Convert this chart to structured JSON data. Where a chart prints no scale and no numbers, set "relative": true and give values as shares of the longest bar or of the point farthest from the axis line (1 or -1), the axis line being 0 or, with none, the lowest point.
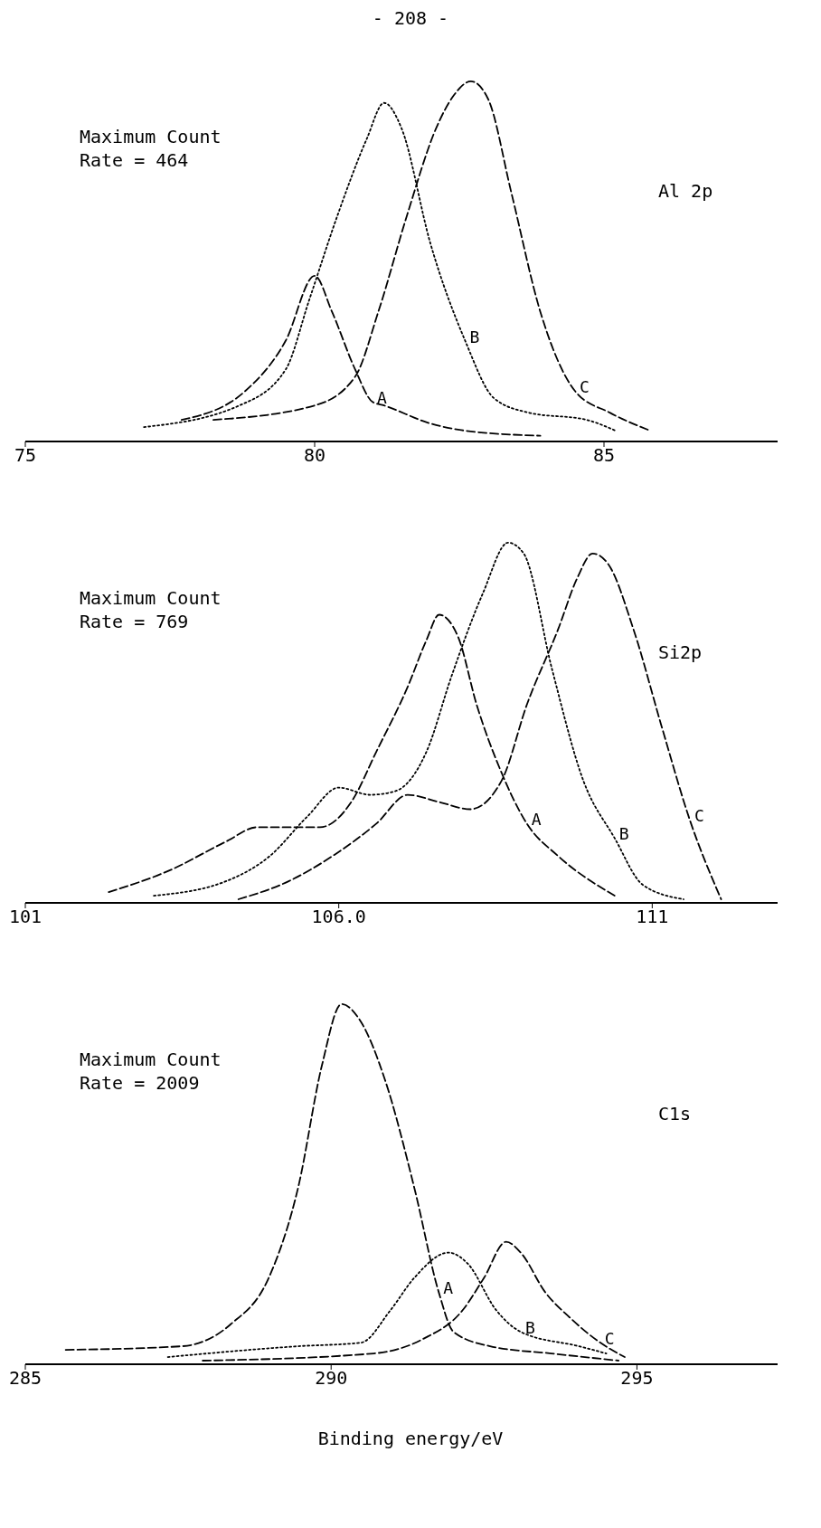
{
  "chart_data": [
    {
      "type": "line",
      "title": "- 208 -",
      "relative": true,
      "xlim": [
        75,
        88
      ],
      "xticks": [
        75,
        80,
        85
      ],
      "annotations": [
        "Maximum Count\nRate = 464",
        "Al 2p"
      ],
      "series": [
        {
          "name": "A",
          "color": "#000000",
          "line_style": "dashed",
          "x": [
            77.7,
            78.8,
            79.5,
            80.0,
            80.3,
            80.7,
            81.0,
            81.2,
            82.0,
            82.6,
            83.9
          ],
          "values": [
            0.06,
            0.14,
            0.28,
            0.46,
            0.36,
            0.2,
            0.11,
            0.1,
            0.05,
            0.03,
            0.016
          ]
        },
        {
          "name": "B",
          "color": "#000000",
          "line_style": "dotted",
          "x": [
            77.05,
            78.7,
            79.5,
            79.9,
            80.4,
            80.9,
            81.2,
            81.5,
            82.0,
            82.6,
            83.1,
            83.7,
            84.7,
            85.2
          ],
          "values": [
            0.04,
            0.1,
            0.2,
            0.39,
            0.63,
            0.84,
            0.94,
            0.87,
            0.55,
            0.28,
            0.12,
            0.08,
            0.06,
            0.03
          ]
        },
        {
          "name": "C",
          "color": "#000000",
          "line_style": "dashed",
          "x": [
            78.25,
            80.0,
            80.7,
            81.1,
            81.6,
            82.1,
            82.4,
            82.7,
            83.0,
            83.4,
            83.9,
            84.5,
            85.1,
            85.8
          ],
          "values": [
            0.06,
            0.1,
            0.18,
            0.36,
            0.63,
            0.87,
            0.96,
            1.0,
            0.95,
            0.69,
            0.36,
            0.14,
            0.08,
            0.03
          ]
        }
      ]
    },
    {
      "type": "line",
      "relative": true,
      "xlim": [
        101,
        113
      ],
      "xticks": [
        101,
        {
          "value": 106,
          "label": "106.0"
        },
        111
      ],
      "annotations": [
        "Maximum Count\nRate = 769",
        "Si2p"
      ],
      "series": [
        {
          "name": "A",
          "color": "#000000",
          "line_style": "dashed",
          "x": [
            102.33,
            103.3,
            104.2,
            104.7,
            105.2,
            105.7,
            106.2,
            106.6,
            107.1,
            107.4,
            107.6,
            107.9,
            108.2,
            108.6,
            109.0,
            109.5,
            110.4
          ],
          "values": [
            0.03,
            0.09,
            0.17,
            0.21,
            0.21,
            0.21,
            0.28,
            0.42,
            0.6,
            0.73,
            0.8,
            0.74,
            0.55,
            0.36,
            0.22,
            0.13,
            0.02
          ]
        },
        {
          "name": "B",
          "color": "#000000",
          "line_style": "dotted",
          "x": [
            103.05,
            104.2,
            104.9,
            105.5,
            106.0,
            106.5,
            106.9,
            107.4,
            107.8,
            108.3,
            108.7,
            108.95,
            109.4,
            109.9,
            110.4,
            110.85,
            111.5
          ],
          "values": [
            0.02,
            0.06,
            0.13,
            0.24,
            0.32,
            0.3,
            0.31,
            0.42,
            0.63,
            0.86,
            1.0,
            0.97,
            0.65,
            0.34,
            0.18,
            0.05,
            0.01
          ]
        },
        {
          "name": "C",
          "color": "#000000",
          "line_style": "dashed",
          "x": [
            104.4,
            105.2,
            105.9,
            106.6,
            107.1,
            107.6,
            108.1,
            108.6,
            109.0,
            109.5,
            109.8,
            110.05,
            110.3,
            110.7,
            111.15,
            111.6,
            112.1
          ],
          "values": [
            0.01,
            0.06,
            0.13,
            0.22,
            0.3,
            0.28,
            0.26,
            0.34,
            0.55,
            0.76,
            0.9,
            0.97,
            0.94,
            0.76,
            0.49,
            0.23,
            0.01
          ]
        }
      ]
    },
    {
      "type": "line",
      "relative": true,
      "xlim": [
        285,
        297.3
      ],
      "xticks": [
        285,
        290,
        295
      ],
      "xlabel": "Binding energy/eV",
      "annotations": [
        "Maximum Count\nRate = 2009",
        "C1s"
      ],
      "series": [
        {
          "name": "A",
          "color": "#000000",
          "line_style": "dashed",
          "x": [
            285.66,
            287.56,
            288.35,
            288.98,
            289.46,
            289.85,
            290.17,
            290.49,
            290.88,
            291.36,
            291.76,
            292.0,
            292.6,
            293.6,
            294.7
          ],
          "values": [
            0.04,
            0.05,
            0.11,
            0.24,
            0.49,
            0.83,
            1.0,
            0.95,
            0.79,
            0.49,
            0.2,
            0.09,
            0.05,
            0.03,
            0.01
          ]
        },
        {
          "name": "B",
          "color": "#000000",
          "line_style": "dotted",
          "x": [
            287.33,
            289.46,
            290.49,
            290.97,
            291.36,
            291.92,
            292.23,
            292.7,
            293.1,
            294.05,
            294.5
          ],
          "values": [
            0.02,
            0.05,
            0.06,
            0.15,
            0.24,
            0.31,
            0.28,
            0.15,
            0.09,
            0.05,
            0.03
          ]
        },
        {
          "name": "C",
          "color": "#000000",
          "line_style": "dashed",
          "x": [
            287.9,
            290.7,
            291.5,
            292.15,
            292.5,
            292.86,
            293.1,
            293.5,
            293.9,
            294.4,
            294.8
          ],
          "values": [
            0.01,
            0.03,
            0.07,
            0.15,
            0.24,
            0.34,
            0.31,
            0.2,
            0.13,
            0.06,
            0.02
          ]
        }
      ]
    }
  ]
}
